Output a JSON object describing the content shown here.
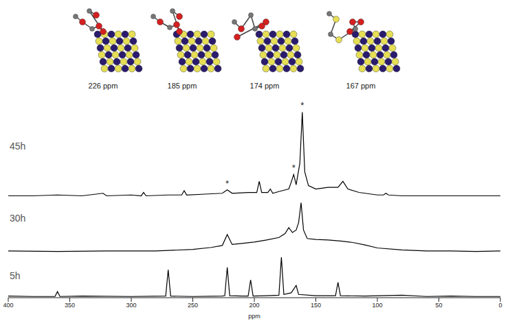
{
  "structures": [
    "226 ppm",
    "185 ppm",
    "174 ppm",
    "167 ppm"
  ],
  "chart_data": [
    {
      "type": "line",
      "x": [
        400,
        380,
        360,
        340,
        323,
        320,
        300,
        292,
        290,
        288,
        270,
        259,
        257,
        255,
        240,
        226,
        222,
        218,
        205,
        198,
        196,
        194,
        189,
        187,
        185,
        180,
        172,
        170,
        168,
        166,
        163,
        161,
        159,
        156,
        150,
        140,
        132,
        128,
        124,
        115,
        100,
        95,
        93,
        91,
        80,
        60,
        40,
        20,
        0
      ],
      "series": [
        {
          "name": "45h",
          "color": "#000000",
          "values": [
            2,
            2,
            3,
            2,
            5,
            2,
            3,
            2,
            6,
            2,
            3,
            3,
            8,
            3,
            4,
            5,
            9,
            5,
            6,
            6,
            19,
            6,
            6,
            10,
            5,
            7,
            10,
            18,
            27,
            15,
            40,
            100,
            30,
            14,
            10,
            12,
            12,
            19,
            10,
            6,
            3,
            3,
            5,
            3,
            2,
            2,
            2,
            2,
            2
          ]
        }
      ],
      "xlim": [
        0,
        400
      ],
      "ylim": [
        0,
        110
      ],
      "tick_labels": false,
      "annotations": [
        {
          "x": 222,
          "y": 9,
          "text": "*"
        },
        {
          "x": 168,
          "y": 27,
          "text": "*"
        },
        {
          "x": 161,
          "y": 100,
          "text": "*"
        }
      ]
    },
    {
      "type": "line",
      "x": [
        400,
        360,
        320,
        280,
        250,
        235,
        226,
        222,
        218,
        210,
        200,
        190,
        180,
        175,
        172,
        169,
        166,
        164,
        162,
        160,
        157,
        150,
        140,
        130,
        120,
        110,
        100,
        80,
        60,
        40,
        20,
        0
      ],
      "series": [
        {
          "name": "30h",
          "color": "#000000",
          "values": [
            3,
            2,
            3,
            3,
            6,
            10,
            14,
            36,
            16,
            18,
            21,
            25,
            30,
            38,
            50,
            40,
            45,
            60,
            100,
            45,
            28,
            26,
            25,
            23,
            20,
            15,
            9,
            5,
            3,
            3,
            2,
            3
          ]
        }
      ],
      "xlim": [
        0,
        400
      ],
      "ylim": [
        0,
        105
      ],
      "tick_labels": false
    },
    {
      "type": "line",
      "x": [
        400,
        380,
        362,
        360,
        358,
        340,
        300,
        272,
        270,
        268,
        250,
        226,
        224,
        222,
        220,
        210,
        205,
        203,
        201,
        190,
        180,
        178,
        176,
        170,
        166,
        164,
        150,
        134,
        132,
        130,
        110,
        80,
        60,
        40,
        20,
        0
      ],
      "series": [
        {
          "name": "5h",
          "color": "#000000",
          "values": [
            4,
            3,
            3,
            15,
            3,
            4,
            3,
            4,
            69,
            4,
            3,
            4,
            5,
            75,
            5,
            4,
            4,
            44,
            4,
            5,
            6,
            100,
            8,
            12,
            30,
            8,
            5,
            5,
            38,
            5,
            4,
            6,
            3,
            4,
            3,
            3
          ]
        }
      ],
      "xlim": [
        0,
        400
      ],
      "ylim": [
        0,
        105
      ],
      "xticks": [
        0,
        50,
        100,
        150,
        200,
        250,
        300,
        350,
        400
      ],
      "xlabel": "ppm",
      "tick_labels": "x"
    }
  ]
}
